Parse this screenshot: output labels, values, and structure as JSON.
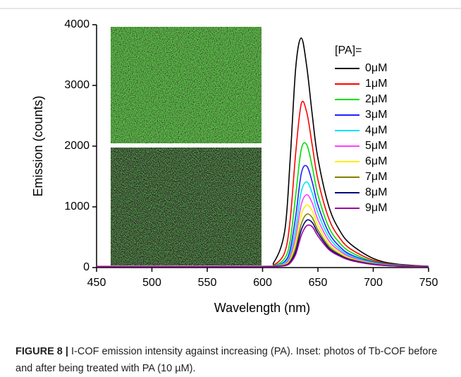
{
  "chart_data": {
    "type": "line",
    "x_label": "Wavelength (nm)",
    "y_label": "Emission (counts)",
    "legend_title": "[PA]=",
    "x": [
      450,
      600,
      610,
      620,
      625,
      630,
      635,
      640,
      645,
      650,
      660,
      670,
      680,
      700,
      720,
      750
    ],
    "series": [
      {
        "name": "0μM",
        "color": "#000000",
        "values": [
          20,
          20,
          80,
          600,
          1800,
          3300,
          3780,
          3300,
          2500,
          1800,
          1000,
          600,
          380,
          150,
          60,
          20
        ]
      },
      {
        "name": "1μM",
        "color": "#ff0000",
        "values": [
          20,
          20,
          40,
          250,
          800,
          1900,
          2700,
          2550,
          2000,
          1450,
          800,
          480,
          300,
          120,
          50,
          20
        ]
      },
      {
        "name": "2μM",
        "color": "#00e000",
        "values": [
          20,
          20,
          30,
          150,
          450,
          1200,
          1950,
          2020,
          1650,
          1200,
          660,
          400,
          250,
          100,
          45,
          20
        ]
      },
      {
        "name": "3μM",
        "color": "#2020ff",
        "values": [
          20,
          20,
          25,
          100,
          300,
          850,
          1550,
          1670,
          1400,
          1030,
          570,
          340,
          210,
          90,
          40,
          20
        ]
      },
      {
        "name": "4μM",
        "color": "#00e0ff",
        "values": [
          20,
          20,
          25,
          80,
          230,
          650,
          1250,
          1410,
          1220,
          900,
          500,
          300,
          190,
          80,
          35,
          20
        ]
      },
      {
        "name": "5μM",
        "color": "#ff40ff",
        "values": [
          20,
          20,
          22,
          60,
          180,
          520,
          1040,
          1200,
          1060,
          790,
          440,
          270,
          170,
          70,
          32,
          20
        ]
      },
      {
        "name": "6μM",
        "color": "#ffee00",
        "values": [
          20,
          20,
          22,
          50,
          140,
          420,
          870,
          1030,
          930,
          700,
          390,
          240,
          150,
          65,
          30,
          20
        ]
      },
      {
        "name": "7μM",
        "color": "#808000",
        "values": [
          20,
          20,
          21,
          40,
          110,
          330,
          720,
          880,
          820,
          620,
          350,
          215,
          135,
          60,
          28,
          20
        ]
      },
      {
        "name": "8μM",
        "color": "#000080",
        "values": [
          20,
          20,
          21,
          35,
          90,
          270,
          620,
          780,
          740,
          570,
          320,
          200,
          125,
          55,
          26,
          20
        ]
      },
      {
        "name": "9μM",
        "color": "#a000a0",
        "values": [
          20,
          20,
          21,
          30,
          75,
          220,
          530,
          690,
          670,
          520,
          295,
          185,
          115,
          50,
          25,
          20
        ]
      }
    ],
    "xlim": [
      450,
      750
    ],
    "xticks": [
      450,
      500,
      550,
      600,
      650,
      700,
      750
    ],
    "ylim": [
      0,
      4000
    ],
    "yticks": [
      0,
      1000,
      2000,
      3000,
      4000
    ]
  },
  "caption": {
    "label": "FIGURE 8 |",
    "text": "I-COF emission intensity against increasing (PA). Inset: photos of Tb-COF before and after being treated with PA (10 µM)."
  }
}
